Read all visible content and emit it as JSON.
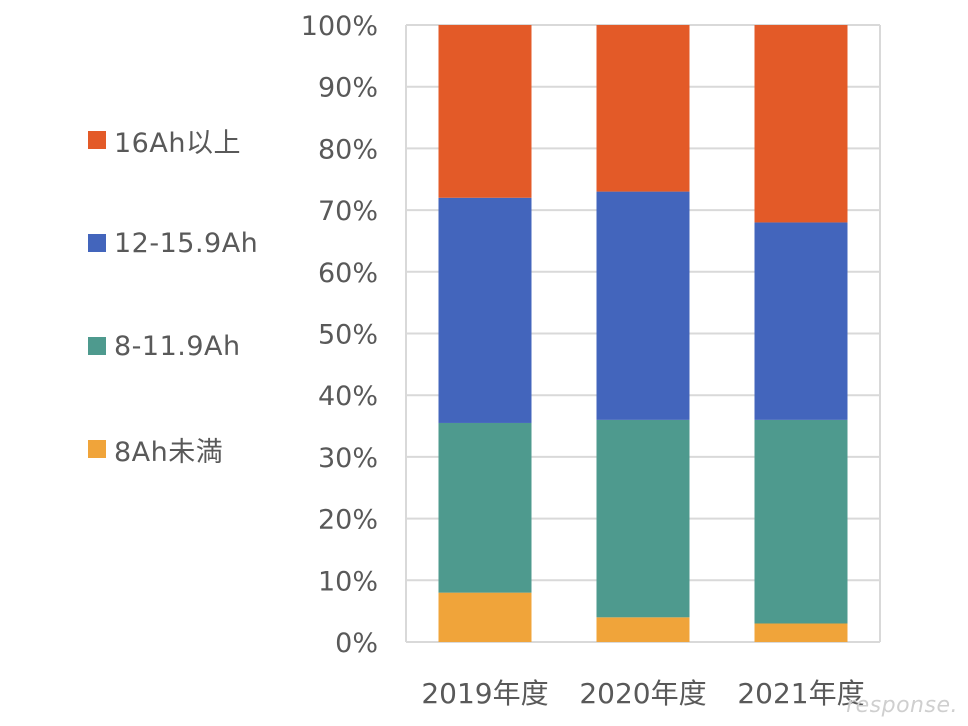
{
  "chart_data": {
    "type": "bar",
    "stacked": true,
    "categories": [
      "2019年度",
      "2020年度",
      "2021年度"
    ],
    "series": [
      {
        "name": "8Ah未満",
        "color": "#F0A43A",
        "values": [
          8,
          4,
          3
        ]
      },
      {
        "name": "8-11.9Ah",
        "color": "#4E9A8E",
        "values": [
          27.5,
          32,
          33
        ]
      },
      {
        "name": "12-15.9Ah",
        "color": "#4365BC",
        "values": [
          36.5,
          37,
          32
        ]
      },
      {
        "name": "16Ah以上",
        "color": "#E35A28",
        "values": [
          28,
          27,
          32
        ]
      }
    ],
    "ylim": [
      0,
      100
    ],
    "yticks": [
      "0%",
      "10%",
      "20%",
      "30%",
      "40%",
      "50%",
      "60%",
      "70%",
      "80%",
      "90%",
      "100%"
    ],
    "grid": true,
    "legend_position": "left"
  },
  "legend": [
    {
      "label": "16Ah以上",
      "color": "#E35A28"
    },
    {
      "label": "12-15.9Ah",
      "color": "#4365BC"
    },
    {
      "label": "8-11.9Ah",
      "color": "#4E9A8E"
    },
    {
      "label": "8Ah未満",
      "color": "#F0A43A"
    }
  ],
  "watermark": "response."
}
